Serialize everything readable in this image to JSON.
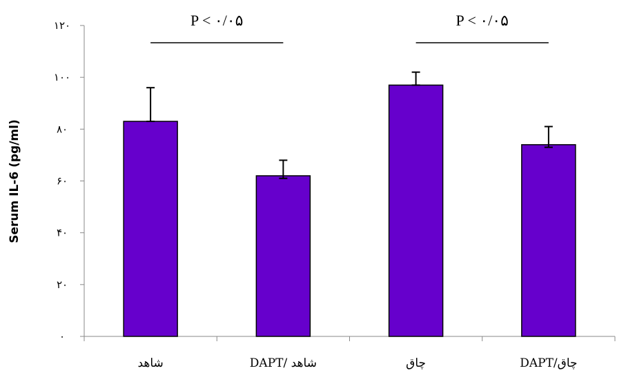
{
  "chart_data": {
    "type": "bar",
    "ylabel": "Serum IL-6 (pg/ml)",
    "categories": [
      "شاهد",
      "DAPT/ شاهد",
      "چاق",
      "DAPT/چاق"
    ],
    "values": [
      83,
      62,
      97,
      74
    ],
    "error_upper": [
      96,
      68,
      102,
      81
    ],
    "error_lower": [
      83,
      61,
      97,
      73
    ],
    "ylim": [
      0,
      120
    ],
    "yticks": [
      0,
      20,
      40,
      60,
      80,
      100,
      120
    ],
    "ytick_labels": [
      "۰",
      "۲۰",
      "۴۰",
      "۶۰",
      "۸۰",
      "۱۰۰",
      "۱۲۰"
    ],
    "bar_color": "#6600cc",
    "grid": false,
    "legend": "none",
    "annotations": [
      {
        "text": "P < ۰/۰۵",
        "between": [
          0,
          1
        ]
      },
      {
        "text": "P < ۰/۰۵",
        "between": [
          2,
          3
        ]
      }
    ]
  }
}
